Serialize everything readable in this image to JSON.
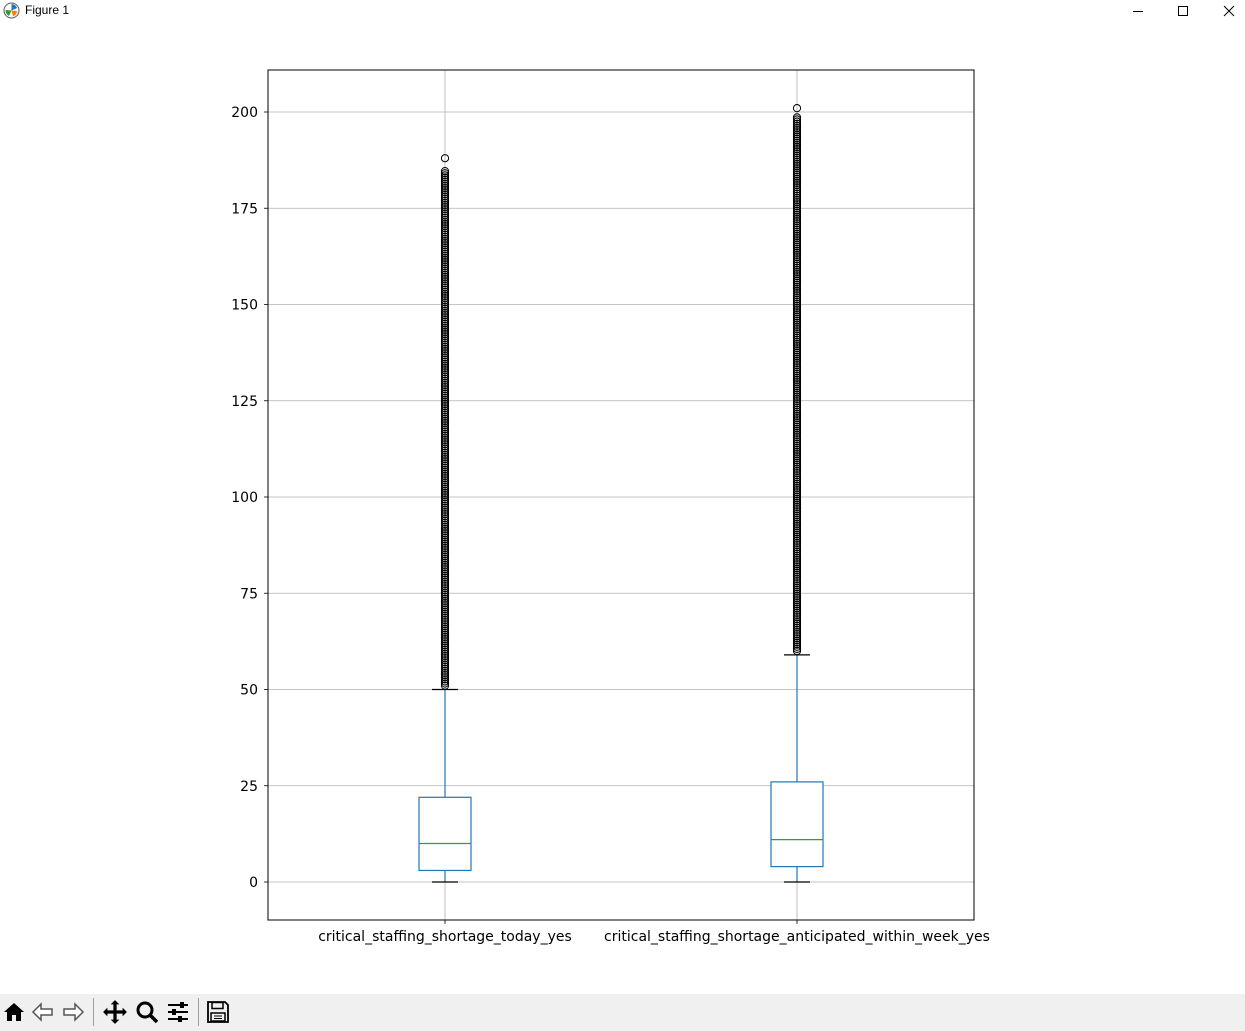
{
  "window": {
    "title": "Figure 1",
    "app_icon": "matplotlib-icon",
    "controls": [
      "minimize-icon",
      "maximize-icon",
      "close-icon"
    ]
  },
  "toolbar": {
    "buttons": [
      {
        "name": "home-button",
        "icon": "home-icon"
      },
      {
        "name": "back-button",
        "icon": "back-arrow-icon"
      },
      {
        "name": "forward-button",
        "icon": "forward-arrow-icon"
      },
      {
        "name": "pan-button",
        "icon": "move-icon"
      },
      {
        "name": "zoom-button",
        "icon": "magnifier-icon"
      },
      {
        "name": "configure-subplots-button",
        "icon": "sliders-icon"
      },
      {
        "name": "save-button",
        "icon": "floppy-disk-icon"
      }
    ]
  },
  "chart_data": {
    "type": "box",
    "title": "",
    "xlabel": "",
    "ylabel": "",
    "categories": [
      "critical_staffing_shortage_today_yes",
      "critical_staffing_shortage_anticipated_within_week_yes"
    ],
    "ylim": [
      -10,
      211
    ],
    "yticks": [
      0,
      25,
      50,
      75,
      100,
      125,
      150,
      175,
      200
    ],
    "grid": true,
    "colors": {
      "box": "#1f77b4",
      "median": "#2ca02c",
      "caps": "#000000",
      "fliers": "#000000",
      "grid": "#b0b0b0"
    },
    "boxes": [
      {
        "category": "critical_staffing_shortage_today_yes",
        "whisker_low": 0,
        "q1": 3,
        "median": 10,
        "q3": 22,
        "whisker_high": 50,
        "outlier_range": [
          51,
          185
        ],
        "outlier_max": 188
      },
      {
        "category": "critical_staffing_shortage_anticipated_within_week_yes",
        "whisker_low": 0,
        "q1": 4,
        "median": 11,
        "q3": 26,
        "whisker_high": 59,
        "outlier_range": [
          60,
          199
        ],
        "outlier_max": 201
      }
    ]
  }
}
